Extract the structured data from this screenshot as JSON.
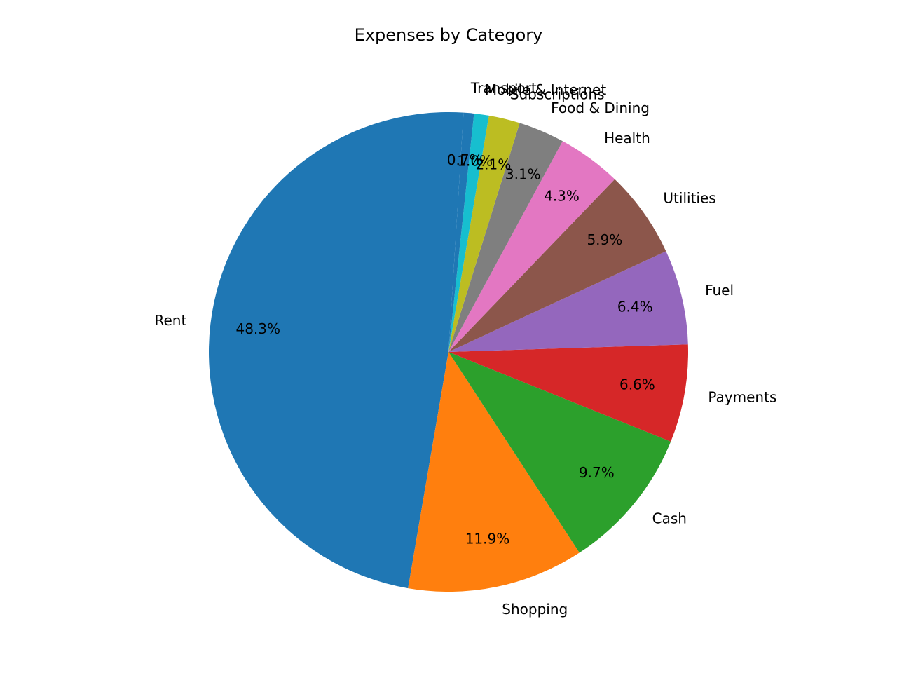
{
  "chart_data": {
    "type": "pie",
    "title": "Expenses by Category",
    "slices": [
      {
        "label": "Rent",
        "value": 48.3,
        "pct_label": "48.3%",
        "color": "#1f77b4"
      },
      {
        "label": "Shopping",
        "value": 11.9,
        "pct_label": "11.9%",
        "color": "#ff7f0e"
      },
      {
        "label": "Cash",
        "value": 9.7,
        "pct_label": "9.7%",
        "color": "#2ca02c"
      },
      {
        "label": "Payments",
        "value": 6.6,
        "pct_label": "6.6%",
        "color": "#d62728"
      },
      {
        "label": "Fuel",
        "value": 6.4,
        "pct_label": "6.4%",
        "color": "#9467bd"
      },
      {
        "label": "Utilities",
        "value": 5.9,
        "pct_label": "5.9%",
        "color": "#8c564b"
      },
      {
        "label": "Health",
        "value": 4.3,
        "pct_label": "4.3%",
        "color": "#e377c2"
      },
      {
        "label": "Food & Dining",
        "value": 3.1,
        "pct_label": "3.1%",
        "color": "#7f7f7f"
      },
      {
        "label": "Subscriptions",
        "value": 2.1,
        "pct_label": "2.1%",
        "color": "#bcbd22"
      },
      {
        "label": "Mobile & Internet",
        "value": 1.0,
        "pct_label": "1.0%",
        "color": "#17becf"
      },
      {
        "label": "Transport",
        "value": 0.7,
        "pct_label": "0.7%",
        "color": "#1f77b4"
      }
    ],
    "start_angle_deg": 86.4,
    "direction": "counterclockwise"
  }
}
